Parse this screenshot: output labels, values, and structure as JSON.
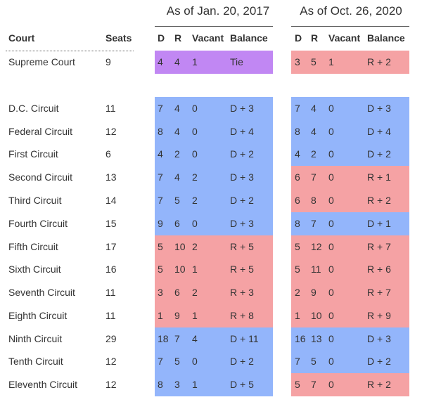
{
  "headers": {
    "court": "Court",
    "seats": "Seats",
    "groups": [
      {
        "title": "As of Jan. 20, 2017",
        "cols": [
          "D",
          "R",
          "Vacant",
          "Balance"
        ]
      },
      {
        "title": "As of Oct. 26, 2020",
        "cols": [
          "D",
          "R",
          "Vacant",
          "Balance"
        ]
      }
    ]
  },
  "colors": {
    "blue": "#93b5fb",
    "red": "#f5a2a4",
    "purple": "#c187f3"
  },
  "rows": [
    {
      "court": "Supreme Court",
      "seats": "9",
      "g1": {
        "d": "4",
        "r": "4",
        "vacant": "1",
        "balance": "Tie",
        "color": "purple"
      },
      "g2": {
        "d": "3",
        "r": "5",
        "vacant": "1",
        "balance": "R + 2",
        "color": "red"
      }
    },
    {
      "court": "D.C. Circuit",
      "seats": "11",
      "g1": {
        "d": "7",
        "r": "4",
        "vacant": "0",
        "balance": "D + 3",
        "color": "blue"
      },
      "g2": {
        "d": "7",
        "r": "4",
        "vacant": "0",
        "balance": "D + 3",
        "color": "blue"
      }
    },
    {
      "court": "Federal Circuit",
      "seats": "12",
      "g1": {
        "d": "8",
        "r": "4",
        "vacant": "0",
        "balance": "D + 4",
        "color": "blue"
      },
      "g2": {
        "d": "8",
        "r": "4",
        "vacant": "0",
        "balance": "D + 4",
        "color": "blue"
      }
    },
    {
      "court": "First Circuit",
      "seats": "6",
      "g1": {
        "d": "4",
        "r": "2",
        "vacant": "0",
        "balance": "D + 2",
        "color": "blue"
      },
      "g2": {
        "d": "4",
        "r": "2",
        "vacant": "0",
        "balance": "D + 2",
        "color": "blue"
      }
    },
    {
      "court": "Second Circuit",
      "seats": "13",
      "g1": {
        "d": "7",
        "r": "4",
        "vacant": "2",
        "balance": "D + 3",
        "color": "blue"
      },
      "g2": {
        "d": "6",
        "r": "7",
        "vacant": "0",
        "balance": "R + 1",
        "color": "red"
      }
    },
    {
      "court": "Third Circuit",
      "seats": "14",
      "g1": {
        "d": "7",
        "r": "5",
        "vacant": "2",
        "balance": "D + 2",
        "color": "blue"
      },
      "g2": {
        "d": "6",
        "r": "8",
        "vacant": "0",
        "balance": "R + 2",
        "color": "red"
      }
    },
    {
      "court": "Fourth Circuit",
      "seats": "15",
      "g1": {
        "d": "9",
        "r": "6",
        "vacant": "0",
        "balance": "D + 3",
        "color": "blue"
      },
      "g2": {
        "d": "8",
        "r": "7",
        "vacant": "0",
        "balance": "D + 1",
        "color": "blue"
      }
    },
    {
      "court": "Fifth Circuit",
      "seats": "17",
      "g1": {
        "d": "5",
        "r": "10",
        "vacant": "2",
        "balance": "R + 5",
        "color": "red"
      },
      "g2": {
        "d": "5",
        "r": "12",
        "vacant": "0",
        "balance": "R + 7",
        "color": "red"
      }
    },
    {
      "court": "Sixth Circuit",
      "seats": "16",
      "g1": {
        "d": "5",
        "r": "10",
        "vacant": "1",
        "balance": "R + 5",
        "color": "red"
      },
      "g2": {
        "d": "5",
        "r": "11",
        "vacant": "0",
        "balance": "R + 6",
        "color": "red"
      }
    },
    {
      "court": "Seventh Circuit",
      "seats": "11",
      "g1": {
        "d": "3",
        "r": "6",
        "vacant": "2",
        "balance": "R + 3",
        "color": "red"
      },
      "g2": {
        "d": "2",
        "r": "9",
        "vacant": "0",
        "balance": "R + 7",
        "color": "red"
      }
    },
    {
      "court": "Eighth Circuit",
      "seats": "11",
      "g1": {
        "d": "1",
        "r": "9",
        "vacant": "1",
        "balance": "R + 8",
        "color": "red"
      },
      "g2": {
        "d": "1",
        "r": "10",
        "vacant": "0",
        "balance": "R + 9",
        "color": "red"
      }
    },
    {
      "court": "Ninth Circuit",
      "seats": "29",
      "g1": {
        "d": "18",
        "r": "7",
        "vacant": "4",
        "balance": "D + 11",
        "color": "blue"
      },
      "g2": {
        "d": "16",
        "r": "13",
        "vacant": "0",
        "balance": "D + 3",
        "color": "blue"
      }
    },
    {
      "court": "Tenth Circuit",
      "seats": "12",
      "g1": {
        "d": "7",
        "r": "5",
        "vacant": "0",
        "balance": "D + 2",
        "color": "blue"
      },
      "g2": {
        "d": "7",
        "r": "5",
        "vacant": "0",
        "balance": "D + 2",
        "color": "blue"
      }
    },
    {
      "court": "Eleventh Circuit",
      "seats": "12",
      "g1": {
        "d": "8",
        "r": "3",
        "vacant": "1",
        "balance": "D + 5",
        "color": "blue"
      },
      "g2": {
        "d": "5",
        "r": "7",
        "vacant": "0",
        "balance": "R + 2",
        "color": "red"
      }
    }
  ]
}
